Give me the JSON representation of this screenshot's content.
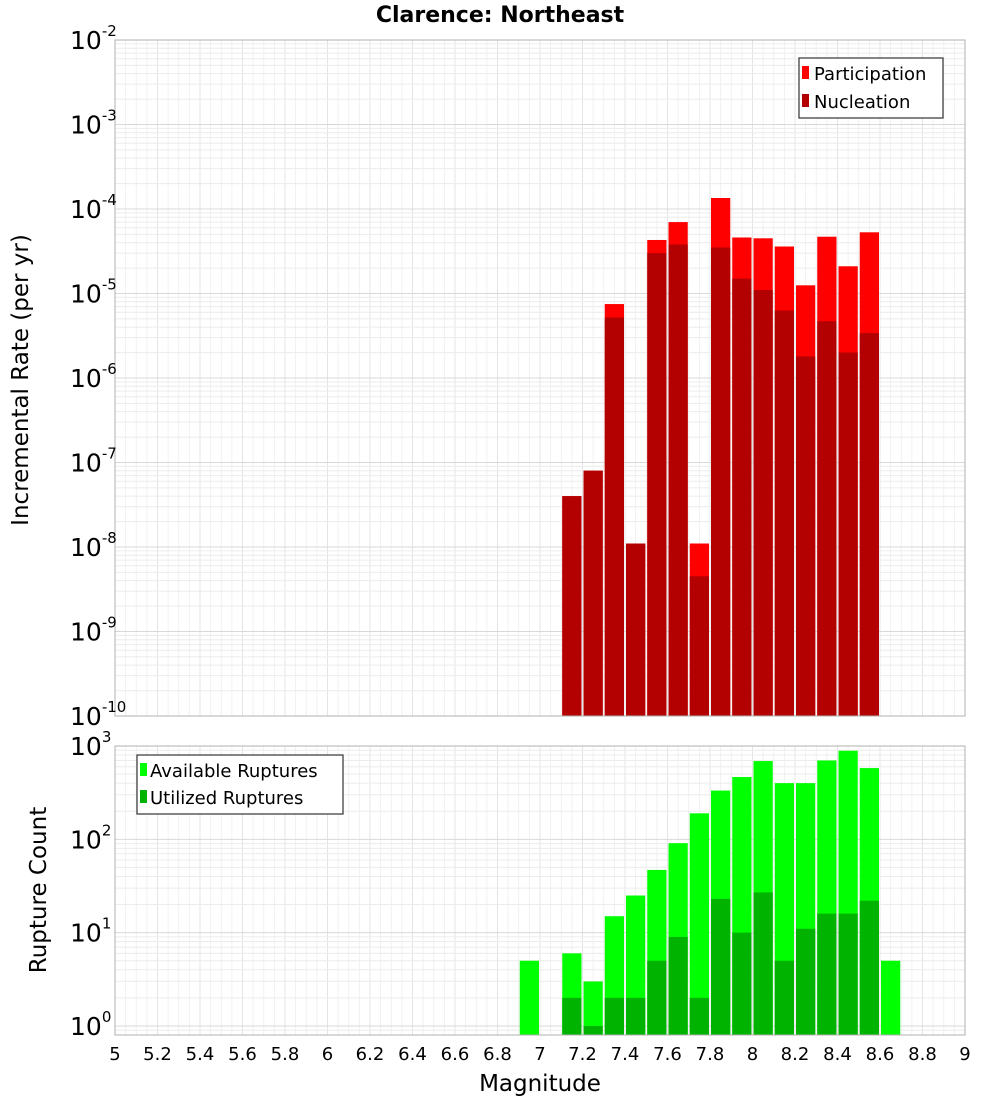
{
  "chart_data": [
    {
      "type": "bar",
      "title": "Clarence: Northeast",
      "xlabel": "Magnitude",
      "ylabel": "Incremental Rate (per yr)",
      "yscale": "log",
      "ylim": [
        1e-10,
        0.01
      ],
      "xlim": [
        5,
        9
      ],
      "grid": true,
      "legend_position": "top-right",
      "x": [
        7.15,
        7.25,
        7.35,
        7.45,
        7.55,
        7.65,
        7.75,
        7.85,
        7.95,
        8.05,
        8.15,
        8.25,
        8.35,
        8.45,
        8.55
      ],
      "series": [
        {
          "name": "Participation",
          "color": "#ff0000",
          "values": [
            4e-08,
            8e-08,
            7.5e-06,
            1.1e-08,
            4.3e-05,
            7e-05,
            1.1e-08,
            0.000135,
            4.6e-05,
            4.5e-05,
            3.6e-05,
            1.25e-05,
            4.7e-05,
            2.1e-05,
            5.3e-05
          ]
        },
        {
          "name": "Nucleation",
          "color": "#b30000",
          "values": [
            4e-08,
            8e-08,
            5.2e-06,
            1.1e-08,
            3e-05,
            3.8e-05,
            4.5e-09,
            3.5e-05,
            1.5e-05,
            1.1e-05,
            6.3e-06,
            1.8e-06,
            4.7e-06,
            2e-06,
            3.4e-06
          ]
        }
      ]
    },
    {
      "type": "bar",
      "xlabel": "Magnitude",
      "ylabel": "Rupture Count",
      "yscale": "log",
      "ylim": [
        0.8,
        1000
      ],
      "xlim": [
        5,
        9
      ],
      "grid": true,
      "legend_position": "top-left",
      "x": [
        6.95,
        7.15,
        7.25,
        7.35,
        7.45,
        7.55,
        7.65,
        7.75,
        7.85,
        7.95,
        8.05,
        8.15,
        8.25,
        8.35,
        8.45,
        8.55,
        8.65
      ],
      "series": [
        {
          "name": "Available Ruptures",
          "color": "#00ff00",
          "values": [
            5,
            6,
            3,
            15,
            25,
            47,
            91,
            190,
            333,
            465,
            690,
            400,
            400,
            700,
            890,
            580,
            5
          ]
        },
        {
          "name": "Utilized Ruptures",
          "color": "#00b300",
          "values": [
            0,
            2,
            1,
            2,
            2,
            5,
            9,
            2,
            23,
            10,
            27,
            5,
            11,
            16,
            16,
            22,
            0
          ]
        }
      ]
    }
  ],
  "x_ticks": [
    "5",
    "5.2",
    "5.4",
    "5.6",
    "5.8",
    "6",
    "6.2",
    "6.4",
    "6.6",
    "6.8",
    "7",
    "7.2",
    "7.4",
    "7.6",
    "7.8",
    "8",
    "8.2",
    "8.4",
    "8.6",
    "8.8",
    "9"
  ],
  "top_y_ticks": [
    {
      "base": "10",
      "exp": "-2"
    },
    {
      "base": "10",
      "exp": "-3"
    },
    {
      "base": "10",
      "exp": "-4"
    },
    {
      "base": "10",
      "exp": "-5"
    },
    {
      "base": "10",
      "exp": "-6"
    },
    {
      "base": "10",
      "exp": "-7"
    },
    {
      "base": "10",
      "exp": "-8"
    },
    {
      "base": "10",
      "exp": "-9"
    },
    {
      "base": "10",
      "exp": "-10"
    }
  ],
  "bottom_y_ticks": [
    {
      "base": "10",
      "exp": "3"
    },
    {
      "base": "10",
      "exp": "2"
    },
    {
      "base": "10",
      "exp": "1"
    },
    {
      "base": "10",
      "exp": "0"
    }
  ]
}
